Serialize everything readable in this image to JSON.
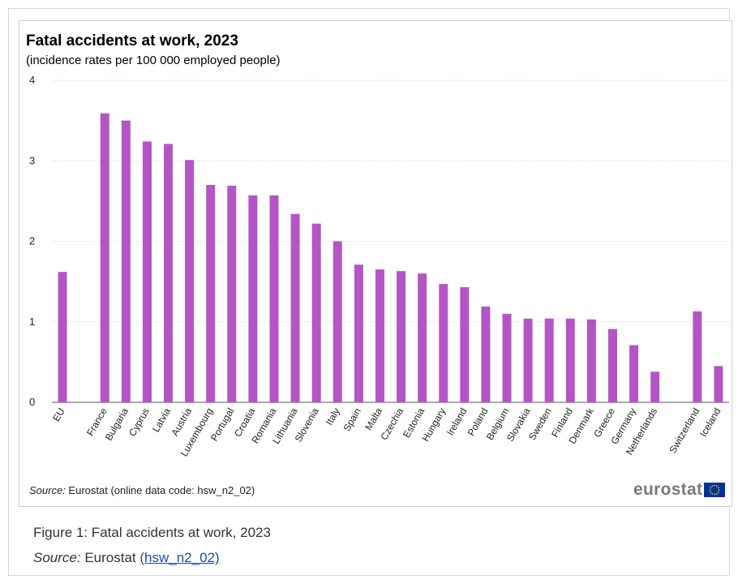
{
  "chart_data": {
    "type": "bar",
    "title": "Fatal accidents at work, 2023",
    "subtitle": "(incidence rates per 100 000 employed  people)",
    "xlabel": "",
    "ylabel": "",
    "ylim": [
      0,
      4
    ],
    "yticks": [
      "0",
      "1",
      "2",
      "3",
      "4"
    ],
    "grid": true,
    "bar_color": "#b455c6",
    "categories": [
      "EU",
      "",
      "France",
      "Bulgaria",
      "Cyprus",
      "Latvia",
      "Austria",
      "Luxembourg",
      "Portugal",
      "Croatia",
      "Romania",
      "Lithuania",
      "Slovenia",
      "Italy",
      "Spain",
      "Malta",
      "Czechia",
      "Estonia",
      "Hungary",
      "Ireland",
      "Poland",
      "Belgium",
      "Slovakia",
      "Sweden",
      "Finland",
      "Denmark",
      "Greece",
      "Germany",
      "Netherlands",
      "",
      "Switzerland",
      "Iceland"
    ],
    "values": [
      1.62,
      null,
      3.59,
      3.5,
      3.24,
      3.21,
      3.01,
      2.7,
      2.69,
      2.57,
      2.57,
      2.34,
      2.22,
      2.0,
      1.71,
      1.65,
      1.63,
      1.6,
      1.47,
      1.43,
      1.19,
      1.1,
      1.04,
      1.04,
      1.04,
      1.03,
      0.91,
      0.71,
      0.38,
      null,
      1.13,
      0.45
    ]
  },
  "source": {
    "label": "Source:",
    "text": " Eurostat (online data code: hsw_n2_02)"
  },
  "logo": {
    "text": "eurostat",
    "flag_color": "#003399",
    "star_color": "#ffcc00"
  },
  "caption": {
    "figure_text": "Figure 1: Fatal accidents at work, 2023",
    "source_label": "Source:",
    "source_text": " Eurostat ",
    "link_text": "(hsw_n2_02)"
  }
}
